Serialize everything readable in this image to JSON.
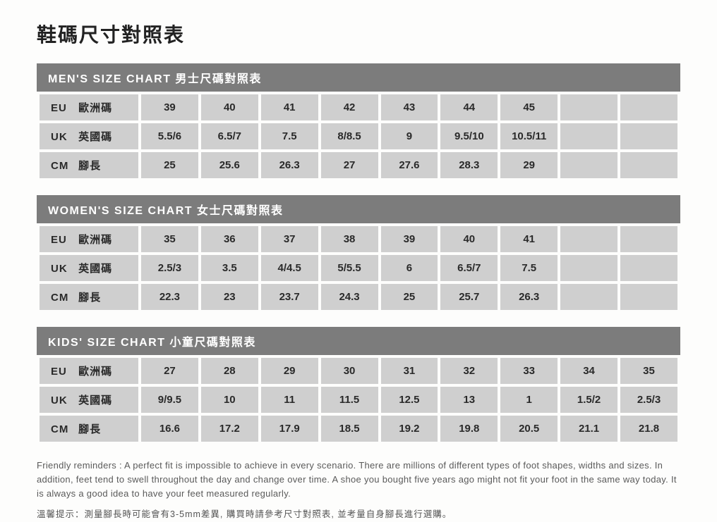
{
  "page_title": "鞋碼尺寸對照表",
  "columns_total": 9,
  "row_labels": {
    "eu": {
      "en": "EU",
      "zh": "歐洲碼"
    },
    "uk": {
      "en": "UK",
      "zh": "英國碼"
    },
    "cm": {
      "en": "CM",
      "zh": "腳長"
    }
  },
  "charts": [
    {
      "title": "MEN'S SIZE CHART 男士尺碼對照表",
      "eu": [
        "39",
        "40",
        "41",
        "42",
        "43",
        "44",
        "45",
        "",
        ""
      ],
      "uk": [
        "5.5/6",
        "6.5/7",
        "7.5",
        "8/8.5",
        "9",
        "9.5/10",
        "10.5/11",
        "",
        ""
      ],
      "cm": [
        "25",
        "25.6",
        "26.3",
        "27",
        "27.6",
        "28.3",
        "29",
        "",
        ""
      ]
    },
    {
      "title": "WOMEN'S SIZE CHART 女士尺碼對照表",
      "eu": [
        "35",
        "36",
        "37",
        "38",
        "39",
        "40",
        "41",
        "",
        ""
      ],
      "uk": [
        "2.5/3",
        "3.5",
        "4/4.5",
        "5/5.5",
        "6",
        "6.5/7",
        "7.5",
        "",
        ""
      ],
      "cm": [
        "22.3",
        "23",
        "23.7",
        "24.3",
        "25",
        "25.7",
        "26.3",
        "",
        ""
      ]
    },
    {
      "title": "KIDS' SIZE CHART 小童尺碼對照表",
      "eu": [
        "27",
        "28",
        "29",
        "30",
        "31",
        "32",
        "33",
        "34",
        "35"
      ],
      "uk": [
        "9/9.5",
        "10",
        "11",
        "11.5",
        "12.5",
        "13",
        "1",
        "1.5/2",
        "2.5/3"
      ],
      "cm": [
        "16.6",
        "17.2",
        "17.9",
        "18.5",
        "19.2",
        "19.8",
        "20.5",
        "21.1",
        "21.8"
      ]
    }
  ],
  "notes": {
    "en": "Friendly reminders : A perfect fit is impossible to achieve in every scenario. There are millions of different types of foot shapes, widths and sizes. In addition, feet tend to swell throughout the day and change over time. A shoe you bought five years ago might not fit your foot in the same way today. It is always a good idea to have your feet measured regularly.",
    "zh": "溫馨提示：測量腳長時可能會有3-5mm差異, 購買時請參考尺寸對照表, 並考量自身腳長進行選購。"
  },
  "colors": {
    "header_bg": "#7c7c7c",
    "header_fg": "#ffffff",
    "cell_bg": "#cfcfcf",
    "cell_fg": "#2a2a2a",
    "page_bg": "#fdfdfc",
    "note_fg": "#5a5a5a"
  }
}
